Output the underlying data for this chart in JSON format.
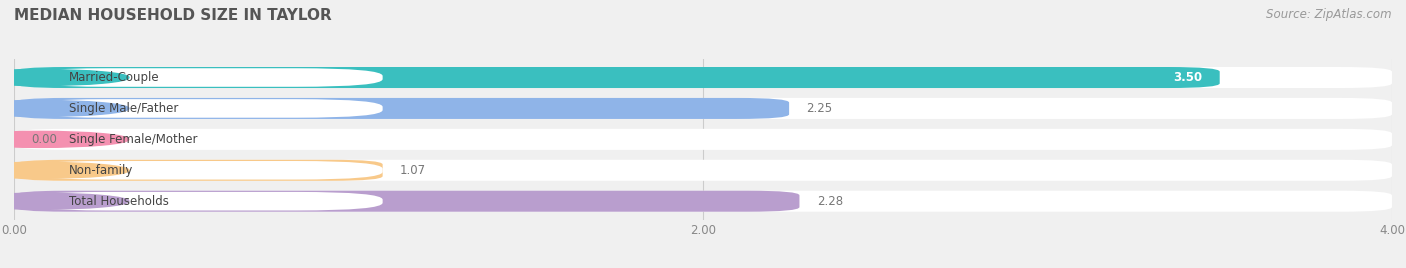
{
  "title": "MEDIAN HOUSEHOLD SIZE IN TAYLOR",
  "source": "Source: ZipAtlas.com",
  "categories": [
    "Married-Couple",
    "Single Male/Father",
    "Single Female/Mother",
    "Non-family",
    "Total Households"
  ],
  "values": [
    3.5,
    2.25,
    0.0,
    1.07,
    2.28
  ],
  "bar_colors": [
    "#3abfbf",
    "#8fb4e8",
    "#f490b0",
    "#f8c98a",
    "#b99ece"
  ],
  "bar_bg_colors": [
    "#eeeeee",
    "#eeeeee",
    "#eeeeee",
    "#eeeeee",
    "#eeeeee"
  ],
  "label_bg_colors": [
    "#3abfbf",
    "#8fb4e8",
    "#f490b0",
    "#f8c98a",
    "#b99ece"
  ],
  "xlim": [
    0,
    4.0
  ],
  "xticks": [
    0.0,
    2.0,
    4.0
  ],
  "title_fontsize": 11,
  "label_fontsize": 8.5,
  "tick_fontsize": 8.5,
  "source_fontsize": 8.5,
  "background_color": "#f0f0f0"
}
